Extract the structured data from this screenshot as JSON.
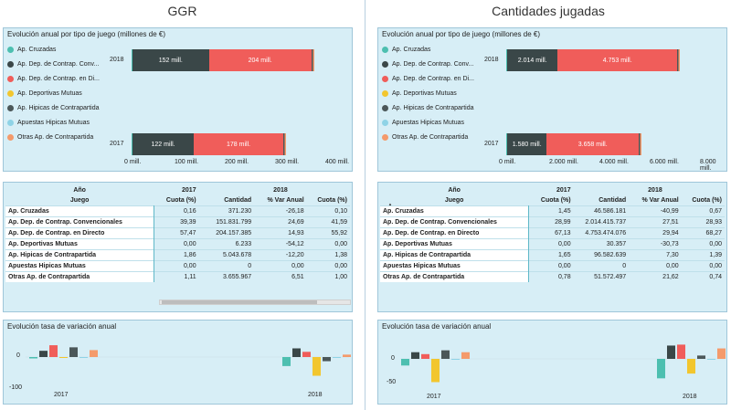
{
  "columns": {
    "left_title": "GGR",
    "right_title": "Cantidades jugadas"
  },
  "colors": {
    "cruzadas": "#4dbfb0",
    "conv": "#3a4748",
    "directo": "#f05d5a",
    "mutuas": "#f2c62e",
    "hipicas_contra": "#4b5759",
    "apuestas_hipicas": "#8fd3e6",
    "otras": "#f49a6b",
    "panel_bg": "#d7eef6",
    "panel_border": "#9fc6d9"
  },
  "legend": [
    {
      "label": "Ap. Cruzadas",
      "color": "#4dbfb0"
    },
    {
      "label": "Ap. Dep. de Contrap. Conv...",
      "color": "#3a4748"
    },
    {
      "label": "Ap. Dep. de Contrap. en Di...",
      "color": "#f05d5a"
    },
    {
      "label": "Ap. Deportivas Mutuas",
      "color": "#f2c62e"
    },
    {
      "label": "Ap. Hipicas de Contrapartida",
      "color": "#4b5759"
    },
    {
      "label": "Apuestas Hipicas Mutuas",
      "color": "#8fd3e6"
    },
    {
      "label": "Otras Ap. de Contrapartida",
      "color": "#f49a6b"
    }
  ],
  "ggr": {
    "bar_title": "Evolución anual por tipo de juego (millones de €)",
    "bars": [
      {
        "year": "2018",
        "conv_label": "152 mill.",
        "dir_label": "204 mill.",
        "conv": 152,
        "dir": 204,
        "other": 5
      },
      {
        "year": "2017",
        "conv_label": "122 mill.",
        "dir_label": "178 mill.",
        "conv": 122,
        "dir": 178,
        "other": 4
      }
    ],
    "xticks": [
      "0 mill.",
      "100 mill.",
      "200 mill.",
      "300 mill.",
      "400 mill."
    ],
    "table": {
      "header_year": "Año",
      "header_game": "Juego",
      "y2017": "2017",
      "y2018": "2018",
      "cols": [
        "Cuota (%)",
        "Cantidad",
        "% Var Anual",
        "Cuota (%)"
      ],
      "rows": [
        [
          "Ap. Cruzadas",
          "0,16",
          "371.230",
          "-26,18",
          "0,10"
        ],
        [
          "Ap. Dep. de Contrap. Convencionales",
          "39,39",
          "151.831.799",
          "24,69",
          "41,59"
        ],
        [
          "Ap. Dep. de Contrap. en Directo",
          "57,47",
          "204.157.385",
          "14,93",
          "55,92"
        ],
        [
          "Ap. Deportivas Mutuas",
          "0,00",
          "6.233",
          "-54,12",
          "0,00"
        ],
        [
          "Ap. Hipicas de Contrapartida",
          "1,86",
          "5.043.678",
          "-12,20",
          "1,38"
        ],
        [
          "Apuestas Hipicas Mutuas",
          "0,00",
          "0",
          "0,00",
          "0,00"
        ],
        [
          "Otras Ap. de Contrapartida",
          "1,11",
          "3.655.967",
          "6,51",
          "1,00"
        ]
      ]
    },
    "var_title": "Evolución tasa de variación anual",
    "var_yticks": [
      "0",
      "-100"
    ],
    "var_years": [
      "2017",
      "2018"
    ]
  },
  "cant": {
    "bar_title": "Evolución anual por tipo de juego (millones de €)",
    "bars": [
      {
        "year": "2018",
        "conv_label": "2.014 mill.",
        "dir_label": "4.753 mill.",
        "conv": 2014,
        "dir": 4753,
        "other": 80
      },
      {
        "year": "2017",
        "conv_label": "1.580 mill.",
        "dir_label": "3.658 mill.",
        "conv": 1580,
        "dir": 3658,
        "other": 60
      }
    ],
    "xticks": [
      "0 mill.",
      "2.000 mill.",
      "4.000 mill.",
      "6.000 mill.",
      "8.000 mill."
    ],
    "table": {
      "header_year": "Año",
      "header_game": "Juego",
      "y2017": "2017",
      "y2018": "2018",
      "cols": [
        "Cuota (%)",
        "Cantidad",
        "% Var Anual",
        "Cuota (%)"
      ],
      "rows": [
        [
          "Ap. Cruzadas",
          "1,45",
          "46.586.181",
          "-40,99",
          "0,67"
        ],
        [
          "Ap. Dep. de Contrap. Convencionales",
          "28,99",
          "2.014.415.737",
          "27,51",
          "28,93"
        ],
        [
          "Ap. Dep. de Contrap. en Directo",
          "67,13",
          "4.753.474.076",
          "29,94",
          "68,27"
        ],
        [
          "Ap. Deportivas Mutuas",
          "0,00",
          "30.357",
          "-30,73",
          "0,00"
        ],
        [
          "Ap. Hipicas de Contrapartida",
          "1,65",
          "96.582.639",
          "7,30",
          "1,39"
        ],
        [
          "Apuestas Hipicas Mutuas",
          "0,00",
          "0",
          "0,00",
          "0,00"
        ],
        [
          "Otras Ap. de Contrapartida",
          "0,78",
          "51.572.497",
          "21,62",
          "0,74"
        ]
      ]
    },
    "var_title": "Evolución tasa de variación anual",
    "var_yticks": [
      "0",
      "-50"
    ],
    "var_years": [
      "2017",
      "2018"
    ]
  }
}
